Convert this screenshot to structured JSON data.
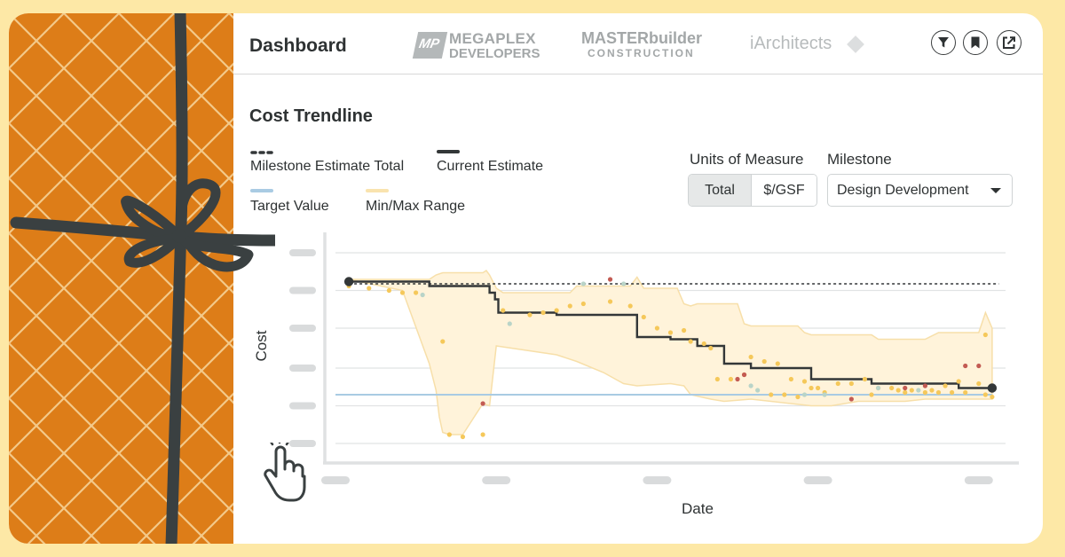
{
  "header": {
    "title": "Dashboard",
    "logos": {
      "megaplex_mark": "MP",
      "megaplex_line1": "MEGAPLEX",
      "megaplex_line2": "DEVELOPERS",
      "masterbuilder_line1": "MASTERbuilder",
      "masterbuilder_line2": "CONSTRUCTION",
      "iarchitects": "iArchitects"
    },
    "icons": [
      "filter-icon",
      "bookmark-icon",
      "share-icon"
    ]
  },
  "section": {
    "title": "Cost Trendline"
  },
  "legend": {
    "milestone_estimate_total": "Milestone Estimate Total",
    "current_estimate": "Current Estimate",
    "target_value": "Target Value",
    "min_max_range": "Min/Max Range"
  },
  "controls": {
    "units_label": "Units of Measure",
    "units_options": [
      "Total",
      "$/GSF"
    ],
    "units_selected": "Total",
    "milestone_label": "Milestone",
    "milestone_selected": "Design Development"
  },
  "colors": {
    "gift_orange": "#dd7d18",
    "gift_lattice": "#f3c98a",
    "ribbon": "#3a4041",
    "page_background": "#fde8a6",
    "current_estimate": "#333738",
    "target": "#a9cbe3",
    "range_fill": "#fff3da",
    "range_stroke": "#f7dfa9",
    "point_yellow": "#f5c85a",
    "point_red": "#c35b53",
    "point_green": "#b9d4c8"
  },
  "chart_data": {
    "type": "line",
    "xlabel": "Date",
    "ylabel": "Cost",
    "xlim": [
      0,
      100
    ],
    "ylim": [
      0,
      100
    ],
    "tick_labels_redacted": true,
    "x_ticks": [
      0,
      24,
      48,
      72,
      96
    ],
    "y_ticks": [
      8,
      25,
      42,
      60,
      77,
      94
    ],
    "grid": true,
    "legend_position": "top-left",
    "milestone_estimate_total": 80,
    "target_value": 30,
    "current_estimate": {
      "x": [
        2,
        14,
        14,
        23,
        23,
        23.8,
        23.8,
        24.3,
        24.3,
        33,
        33,
        45,
        45,
        50,
        50,
        54,
        54,
        58,
        58,
        62,
        62,
        71,
        71,
        80,
        80,
        93,
        93,
        98
      ],
      "y": [
        81,
        81,
        79,
        79,
        76,
        76,
        73,
        73,
        67,
        67,
        66,
        66,
        56,
        56,
        55,
        55,
        52,
        52,
        44,
        44,
        42,
        42,
        37,
        37,
        35,
        35,
        33,
        33
      ]
    },
    "min_max_range": {
      "x": [
        2,
        14,
        15,
        16,
        21,
        22,
        22.5,
        23,
        24,
        25,
        35,
        36,
        44,
        45,
        46,
        51,
        52,
        53,
        54,
        60,
        61,
        62,
        69,
        70,
        71,
        75,
        80,
        81,
        88,
        90,
        96,
        97,
        98,
        98,
        96,
        93,
        88,
        85,
        78,
        74,
        71,
        68,
        62,
        58,
        56,
        53,
        52,
        50,
        45,
        43,
        40,
        36,
        33,
        24,
        23,
        22,
        19,
        17,
        16,
        15.5,
        15,
        14,
        10,
        2
      ],
      "y": [
        82,
        82,
        84,
        85,
        85,
        85,
        86,
        84,
        78,
        76,
        76,
        79,
        79,
        83,
        78,
        78,
        71,
        70,
        71,
        71,
        62,
        61,
        61,
        58,
        57,
        57,
        57,
        55,
        55,
        58,
        58,
        67,
        60,
        28,
        28,
        28,
        28,
        27,
        27,
        25,
        25,
        26,
        28,
        27,
        28,
        30,
        34,
        35,
        34,
        35,
        40,
        45,
        48,
        52,
        25,
        26,
        12,
        12,
        13,
        20,
        32,
        44,
        77,
        82
      ]
    },
    "points": {
      "yellow": [
        [
          2,
          79
        ],
        [
          5,
          78
        ],
        [
          8,
          77
        ],
        [
          10,
          76
        ],
        [
          12,
          76
        ],
        [
          16,
          54
        ],
        [
          17,
          12
        ],
        [
          19,
          11
        ],
        [
          22,
          12
        ],
        [
          25,
          68
        ],
        [
          29,
          66
        ],
        [
          31,
          67
        ],
        [
          33,
          68
        ],
        [
          35,
          70
        ],
        [
          37,
          71
        ],
        [
          41,
          72
        ],
        [
          44,
          70
        ],
        [
          46,
          65
        ],
        [
          48,
          60
        ],
        [
          50,
          58
        ],
        [
          52,
          59
        ],
        [
          53,
          54
        ],
        [
          55,
          53
        ],
        [
          56,
          51
        ],
        [
          57,
          37
        ],
        [
          59,
          37
        ],
        [
          61,
          39
        ],
        [
          62,
          47
        ],
        [
          64,
          45
        ],
        [
          66,
          44
        ],
        [
          68,
          37
        ],
        [
          70,
          36
        ],
        [
          71,
          33
        ],
        [
          73,
          31
        ],
        [
          75,
          35
        ],
        [
          77,
          35
        ],
        [
          79,
          37
        ],
        [
          81,
          33
        ],
        [
          83,
          33
        ],
        [
          85,
          31
        ],
        [
          88,
          31
        ],
        [
          89,
          32
        ],
        [
          91,
          34
        ],
        [
          93,
          36
        ],
        [
          94,
          31
        ],
        [
          97,
          30
        ],
        [
          98,
          29
        ],
        [
          65,
          30
        ],
        [
          67,
          30
        ],
        [
          69,
          29
        ],
        [
          72,
          33
        ],
        [
          80,
          30
        ],
        [
          84,
          32
        ],
        [
          86,
          32
        ],
        [
          90,
          31
        ],
        [
          92,
          31
        ],
        [
          96,
          35
        ],
        [
          97,
          57
        ]
      ],
      "red": [
        [
          22,
          26
        ],
        [
          41,
          82
        ],
        [
          60,
          37
        ],
        [
          61,
          39
        ],
        [
          77,
          28
        ],
        [
          85,
          33
        ],
        [
          88,
          34
        ],
        [
          94,
          43
        ],
        [
          96,
          43
        ]
      ],
      "green": [
        [
          13,
          75
        ],
        [
          26,
          62
        ],
        [
          37,
          80
        ],
        [
          43,
          80
        ],
        [
          62,
          34
        ],
        [
          63,
          32
        ],
        [
          81,
          33
        ],
        [
          87,
          32
        ],
        [
          70,
          30
        ],
        [
          73,
          30
        ]
      ]
    }
  }
}
